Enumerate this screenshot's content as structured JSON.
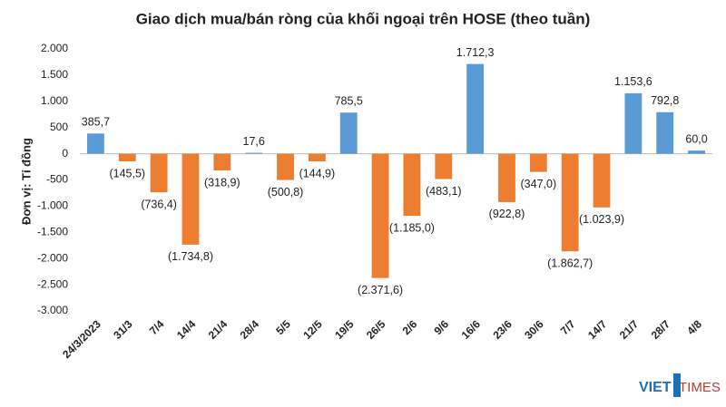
{
  "chart_data": {
    "type": "bar",
    "title": "Giao dịch mua/bán ròng của khối ngoại trên HOSE (theo tuần)",
    "y_label": "Đơn vị: Tỉ đồng",
    "categories": [
      "24/3/2023",
      "31/3",
      "7/4",
      "14/4",
      "21/4",
      "28/4",
      "5/5",
      "12/5",
      "19/5",
      "26/5",
      "2/6",
      "9/6",
      "16/6",
      "23/6",
      "30/6",
      "7/7",
      "14/7",
      "21/7",
      "28/7",
      "4/8"
    ],
    "values": [
      385.7,
      -145.5,
      -736.4,
      -1734.8,
      -318.9,
      17.6,
      -500.8,
      -144.9,
      785.5,
      -2371.6,
      -1185.0,
      -483.1,
      1712.3,
      -922.8,
      -347.0,
      -1862.7,
      -1023.9,
      1153.6,
      792.8,
      60.0
    ],
    "value_labels": [
      "385,7",
      "(145,5)",
      "(736,4)",
      "(1.734,8)",
      "(318,9)",
      "17,6",
      "(500,8)",
      "(144,9)",
      "785,5",
      "(2.371,6)",
      "(1.185,0)",
      "(483,1)",
      "1.712,3",
      "(922,8)",
      "(347,0)",
      "(1.862,7)",
      "(1.023,9)",
      "1.153,6",
      "792,8",
      "60,0"
    ],
    "positive_color": "#5b9bd5",
    "negative_color": "#ed7d31",
    "ylim": [
      -3000,
      2000
    ],
    "yticks": [
      {
        "value": 2000,
        "label": "2.000"
      },
      {
        "value": 1500,
        "label": "1.500"
      },
      {
        "value": 1000,
        "label": "1.000"
      },
      500,
      0,
      -500,
      {
        "value": -1000,
        "label": "-1.000"
      },
      {
        "value": -1500,
        "label": "-1.500"
      },
      {
        "value": -2000,
        "label": "-2.000"
      },
      {
        "value": -2500,
        "label": "-2.500"
      },
      {
        "value": -3000,
        "label": "-3.000"
      }
    ],
    "grid": false
  },
  "logo": {
    "part1": "VIET",
    "part2": "TIMES"
  }
}
